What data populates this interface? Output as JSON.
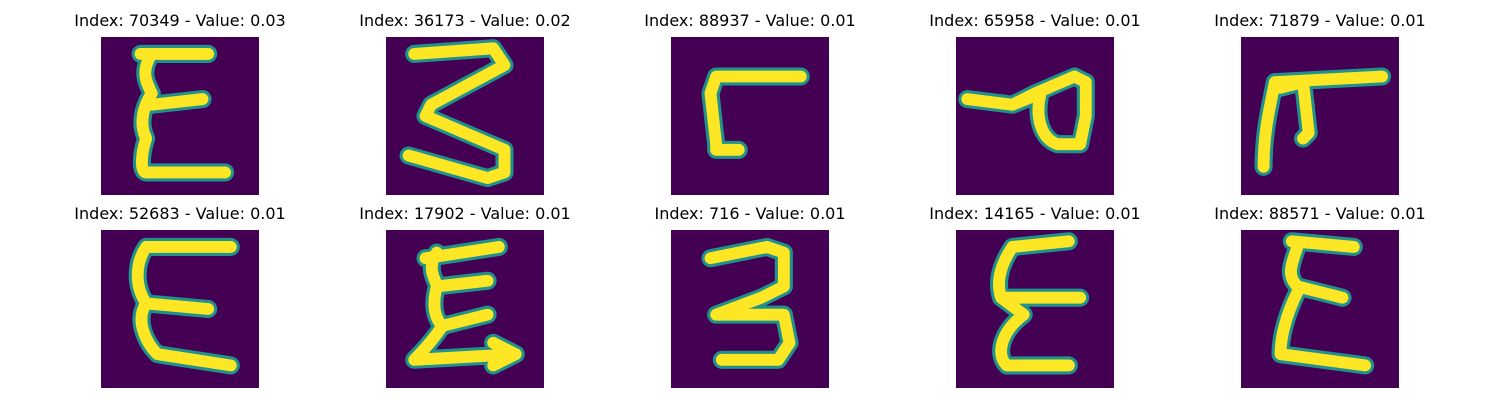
{
  "figure": {
    "panels": [
      {
        "title": "Index: 70349 - Value: 0.03",
        "glyph": "E"
      },
      {
        "title": "Index: 36173 - Value: 0.02",
        "glyph": "3"
      },
      {
        "title": "Index: 88937 - Value: 0.01",
        "glyph": "L"
      },
      {
        "title": "Index: 65958 - Value: 0.01",
        "glyph": "q"
      },
      {
        "title": "Index: 71879 - Value: 0.01",
        "glyph": "T"
      },
      {
        "title": "Index: 52683 - Value: 0.01",
        "glyph": "E"
      },
      {
        "title": "Index: 17902 - Value: 0.01",
        "glyph": "E"
      },
      {
        "title": "Index: 716 - Value: 0.01",
        "glyph": "3"
      },
      {
        "title": "Index: 14165 - Value: 0.01",
        "glyph": "E"
      },
      {
        "title": "Index: 88571 - Value: 0.01",
        "glyph": "E"
      }
    ]
  },
  "colors": {
    "background": "#440154",
    "stroke_outer": "#21918c",
    "stroke_inner": "#fde725"
  }
}
